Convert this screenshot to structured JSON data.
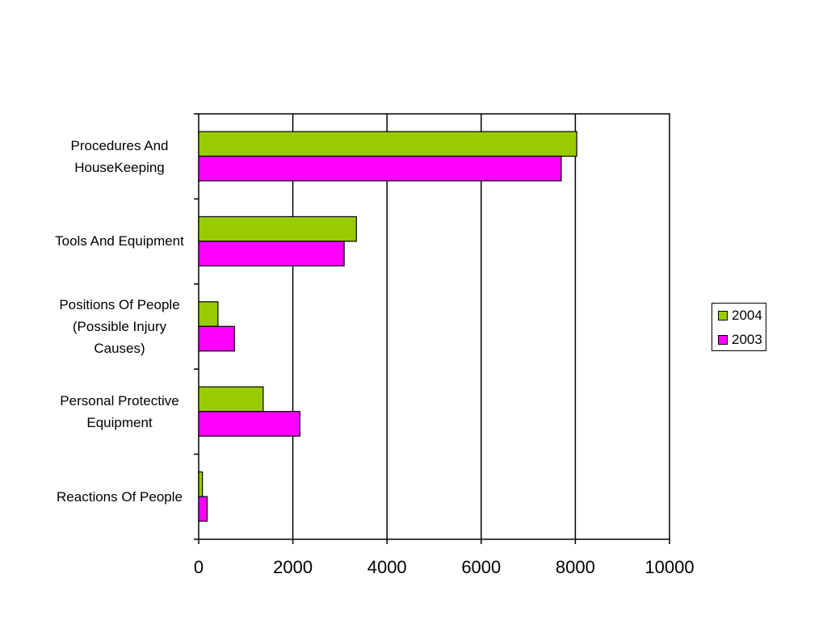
{
  "chart_data": {
    "type": "bar",
    "orientation": "horizontal",
    "categories": [
      "Procedures And\nHouseKeeping",
      "Tools And Equipment",
      "Positions Of People\n(Possible Injury\nCauses)",
      "Personal Protective\nEquipment",
      "Reactions Of People"
    ],
    "series": [
      {
        "name": "2004",
        "color": "#99cc00",
        "values": [
          8030,
          3350,
          410,
          1370,
          80
        ]
      },
      {
        "name": "2003",
        "color": "#ff00ff",
        "values": [
          7700,
          3090,
          760,
          2150,
          180
        ]
      }
    ],
    "xlim": [
      0,
      10000
    ],
    "x_ticks": [
      "0",
      "2000",
      "4000",
      "6000",
      "8000",
      "10000"
    ],
    "grid": true,
    "legend_position": "right"
  }
}
